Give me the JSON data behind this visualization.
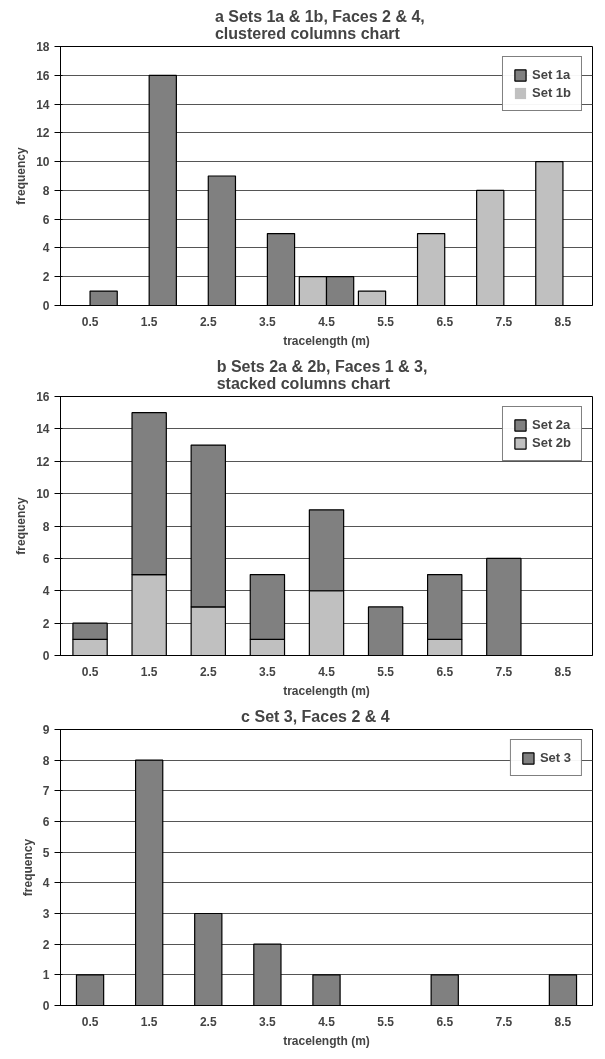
{
  "chart_data": [
    {
      "type": "bar",
      "title": "a   Sets 1a  & 1b, Faces 2 & 4, clustered columns chart",
      "xlabel": "tracelength (m)",
      "ylabel": "frequency",
      "categories": [
        "0.5",
        "1.5",
        "2.5",
        "3.5",
        "4.5",
        "5.5",
        "6.5",
        "7.5",
        "8.5"
      ],
      "series": [
        {
          "name": "Set 1b",
          "color": "#c0c0c0",
          "values": [
            0,
            0,
            0,
            0,
            2,
            1,
            5,
            8,
            10
          ]
        },
        {
          "name": "Set 1a",
          "color": "#808080",
          "values": [
            1,
            16,
            9,
            5,
            2,
            0,
            0,
            0,
            0
          ]
        }
      ],
      "ylim": [
        0,
        18
      ],
      "yticks": [
        0,
        2,
        4,
        6,
        8,
        10,
        12,
        14,
        16,
        18
      ],
      "grid": "y",
      "legend": "top right"
    },
    {
      "type": "bar",
      "title": "b   Sets 2a & 2b, Faces 1 & 3, stacked columns chart",
      "xlabel": "tracelength (m)",
      "ylabel": "frequency",
      "stacked": true,
      "categories": [
        "0.5",
        "1.5",
        "2.5",
        "3.5",
        "4.5",
        "5.5",
        "6.5",
        "7.5",
        "8.5"
      ],
      "series": [
        {
          "name": "Set 2b",
          "color": "#c0c0c0",
          "values": [
            1,
            5,
            3,
            1,
            4,
            0,
            1,
            0,
            0
          ]
        },
        {
          "name": "Set 2a",
          "color": "#808080",
          "values": [
            1,
            10,
            10,
            4,
            5,
            3,
            4,
            6,
            0
          ]
        }
      ],
      "ylim": [
        0,
        16
      ],
      "yticks": [
        0,
        2,
        4,
        6,
        8,
        10,
        12,
        14,
        16
      ],
      "grid": "y",
      "legend": "top right"
    },
    {
      "type": "bar",
      "title": "c      Set 3, Faces 2 & 4",
      "xlabel": "tracelength (m)",
      "ylabel": "frequency",
      "categories": [
        "0.5",
        "1.5",
        "2.5",
        "3.5",
        "4.5",
        "5.5",
        "6.5",
        "7.5",
        "8.5"
      ],
      "series": [
        {
          "name": "Set 3",
          "color": "#808080",
          "values": [
            1,
            8,
            3,
            2,
            1,
            0,
            1,
            0,
            1
          ]
        }
      ],
      "ylim": [
        0,
        9
      ],
      "yticks": [
        0,
        1,
        2,
        3,
        4,
        5,
        6,
        7,
        8,
        9
      ],
      "grid": "y",
      "legend": "top right"
    }
  ]
}
